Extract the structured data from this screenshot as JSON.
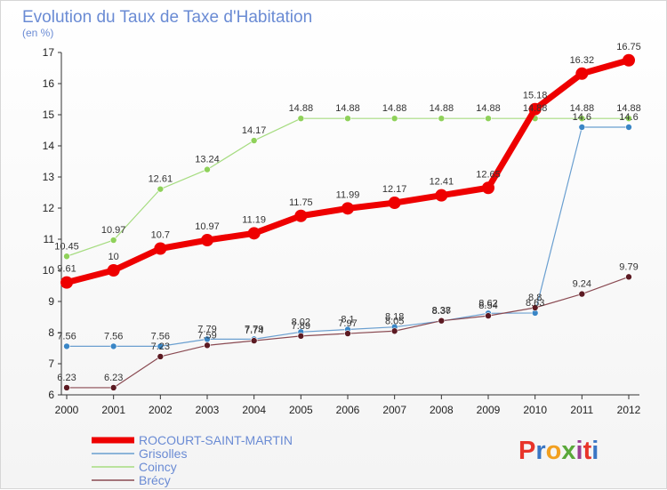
{
  "chart_data": {
    "type": "line",
    "title": "Evolution du Taux de Taxe d'Habitation",
    "subtitle": "(en %)",
    "x": [
      "2000",
      "2001",
      "2002",
      "2003",
      "2004",
      "2005",
      "2006",
      "2007",
      "2008",
      "2009",
      "2010",
      "2011",
      "2012"
    ],
    "ylim": [
      6,
      17
    ],
    "yticks": [
      6,
      7,
      8,
      9,
      10,
      11,
      12,
      13,
      14,
      15,
      16,
      17
    ],
    "grid": false,
    "legend_placement": "bottom-left",
    "series": [
      {
        "name": "ROCOURT-SAINT-MARTIN",
        "color": "#ee0000",
        "width": 7,
        "marker": 7,
        "values": [
          9.61,
          10,
          10.7,
          10.97,
          11.19,
          11.75,
          11.99,
          12.17,
          12.41,
          12.65,
          15.18,
          16.32,
          16.75
        ]
      },
      {
        "name": "Grisolles",
        "color": "#6a9fd0",
        "width": 1.2,
        "marker": 3.5,
        "marker_fill": "#3a86c6",
        "values": [
          7.56,
          7.56,
          7.56,
          7.79,
          7.79,
          8.02,
          8.1,
          8.18,
          8.37,
          8.62,
          8.63,
          14.6,
          14.6
        ]
      },
      {
        "name": "Coincy",
        "color": "#a6dc80",
        "width": 1.2,
        "marker": 3.5,
        "marker_fill": "#8fd15a",
        "values": [
          10.45,
          10.97,
          12.61,
          13.24,
          14.17,
          14.88,
          14.88,
          14.88,
          14.88,
          14.88,
          14.88,
          14.88,
          14.88
        ]
      },
      {
        "name": "Brécy",
        "color": "#8a4a52",
        "width": 1.2,
        "marker": 3.5,
        "marker_fill": "#5c1a22",
        "values": [
          6.23,
          6.23,
          7.23,
          7.59,
          7.74,
          7.89,
          7.97,
          8.05,
          8.38,
          8.54,
          8.8,
          9.24,
          9.79
        ]
      }
    ],
    "data_labels": [
      [
        "9.61",
        "10",
        "10.7",
        "10.97",
        "11.19",
        "11.75",
        "11.99",
        "12.17",
        "12.41",
        "12.65",
        "15.18",
        "16.32",
        "16.75"
      ],
      [
        "7.56",
        "7.56",
        "7.56",
        "7.79",
        "7.79",
        "8.02",
        "8.1",
        "8.18",
        "8.37",
        "8.62",
        "8.63",
        "14.6",
        "14.6"
      ],
      [
        "10.45",
        "10.97",
        "12.61",
        "13.24",
        "14.17",
        "14.88",
        "14.88",
        "14.88",
        "14.88",
        "14.88",
        "14.88",
        "14.88",
        "14.88"
      ],
      [
        "6.23",
        "6.23",
        "7.23",
        "7.59",
        "7.74",
        "7.89",
        "7.97",
        "8.05",
        "8.38",
        "8.54",
        "8.8",
        "9.24",
        "9.79"
      ]
    ]
  },
  "logo": {
    "text": "Proxiti",
    "letter_colors": [
      "#e8342a",
      "#3a76c4",
      "#f2a020",
      "#5aa83a",
      "#9b3f92",
      "#e8342a",
      "#3a76c4"
    ]
  }
}
